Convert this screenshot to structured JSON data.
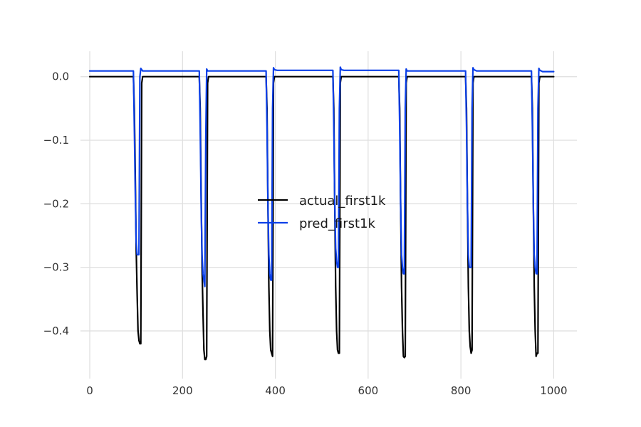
{
  "chart_data": {
    "type": "line",
    "title": "",
    "xlabel": "",
    "ylabel": "",
    "xlim": [
      -20,
      1050
    ],
    "ylim": [
      -0.475,
      0.04
    ],
    "xticks": [
      0,
      200,
      400,
      600,
      800,
      1000
    ],
    "yticks": [
      0.0,
      -0.1,
      -0.2,
      -0.3,
      -0.4
    ],
    "xtick_labels": [
      "0",
      "200",
      "400",
      "600",
      "800",
      "1000"
    ],
    "ytick_labels": [
      "0.0",
      "−0.1",
      "−0.2",
      "−0.3",
      "−0.4"
    ],
    "grid": true,
    "legend_position": "center",
    "series": [
      {
        "name": "actual_first1k",
        "color": "#000000",
        "x": [
          0,
          94,
          96,
          98,
          100,
          102,
          104,
          106,
          108,
          110,
          112,
          114,
          236,
          238,
          240,
          242,
          244,
          246,
          248,
          250,
          252,
          254,
          256,
          258,
          380,
          382,
          384,
          386,
          388,
          390,
          392,
          394,
          396,
          398,
          400,
          524,
          526,
          528,
          530,
          532,
          534,
          536,
          538,
          540,
          542,
          544,
          666,
          668,
          670,
          672,
          674,
          676,
          678,
          680,
          682,
          684,
          686,
          810,
          812,
          814,
          816,
          818,
          820,
          822,
          824,
          826,
          828,
          830,
          952,
          954,
          956,
          958,
          960,
          962,
          964,
          966,
          968,
          970,
          972,
          1000
        ],
        "y": [
          0.0,
          0.0,
          -0.05,
          -0.15,
          -0.27,
          -0.34,
          -0.4,
          -0.415,
          -0.42,
          -0.42,
          -0.01,
          0.0,
          0.0,
          -0.05,
          -0.18,
          -0.3,
          -0.37,
          -0.43,
          -0.445,
          -0.445,
          -0.44,
          -0.01,
          0.0,
          0.0,
          0.0,
          -0.05,
          -0.2,
          -0.33,
          -0.4,
          -0.43,
          -0.435,
          -0.44,
          -0.01,
          0.0,
          0.0,
          0.0,
          -0.05,
          -0.2,
          -0.33,
          -0.4,
          -0.43,
          -0.435,
          -0.435,
          -0.01,
          0.0,
          0.0,
          0.0,
          -0.05,
          -0.2,
          -0.33,
          -0.4,
          -0.44,
          -0.442,
          -0.44,
          -0.01,
          0.0,
          0.0,
          0.0,
          -0.05,
          -0.2,
          -0.33,
          -0.4,
          -0.425,
          -0.435,
          -0.43,
          -0.01,
          0.0,
          0.0,
          0.0,
          -0.05,
          -0.2,
          -0.33,
          -0.4,
          -0.44,
          -0.435,
          -0.435,
          -0.01,
          0.0,
          0.0,
          0.0
        ]
      },
      {
        "name": "pred_first1k",
        "color": "#0a3fe8",
        "x": [
          0,
          94,
          96,
          98,
          100,
          102,
          104,
          106,
          108,
          110,
          112,
          114,
          120,
          236,
          238,
          240,
          242,
          244,
          246,
          248,
          250,
          252,
          254,
          256,
          262,
          380,
          382,
          384,
          386,
          388,
          390,
          392,
          394,
          396,
          398,
          404,
          524,
          526,
          528,
          530,
          532,
          534,
          536,
          538,
          540,
          542,
          548,
          666,
          668,
          670,
          672,
          674,
          676,
          678,
          680,
          682,
          684,
          690,
          810,
          812,
          814,
          816,
          818,
          820,
          822,
          824,
          826,
          828,
          834,
          952,
          954,
          956,
          958,
          960,
          962,
          964,
          966,
          968,
          970,
          976,
          1000
        ],
        "y": [
          0.009,
          0.009,
          -0.08,
          -0.18,
          -0.26,
          -0.28,
          -0.28,
          -0.28,
          0.0,
          0.013,
          0.011,
          0.009,
          0.009,
          0.009,
          -0.08,
          -0.2,
          -0.28,
          -0.31,
          -0.32,
          -0.33,
          -0.1,
          0.012,
          0.009,
          0.009,
          0.009,
          0.009,
          -0.08,
          -0.2,
          -0.28,
          -0.31,
          -0.32,
          -0.32,
          -0.05,
          0.014,
          0.011,
          0.01,
          0.01,
          -0.08,
          -0.2,
          -0.27,
          -0.29,
          -0.3,
          -0.3,
          -0.05,
          0.015,
          0.011,
          0.01,
          0.01,
          -0.08,
          -0.2,
          -0.28,
          -0.3,
          -0.31,
          -0.31,
          -0.05,
          0.012,
          0.009,
          0.009,
          0.009,
          -0.08,
          -0.2,
          -0.28,
          -0.3,
          -0.3,
          -0.3,
          -0.05,
          0.014,
          0.011,
          0.009,
          0.009,
          -0.08,
          -0.2,
          -0.28,
          -0.3,
          -0.31,
          -0.31,
          -0.05,
          0.013,
          0.01,
          0.008,
          0.008
        ]
      }
    ]
  }
}
